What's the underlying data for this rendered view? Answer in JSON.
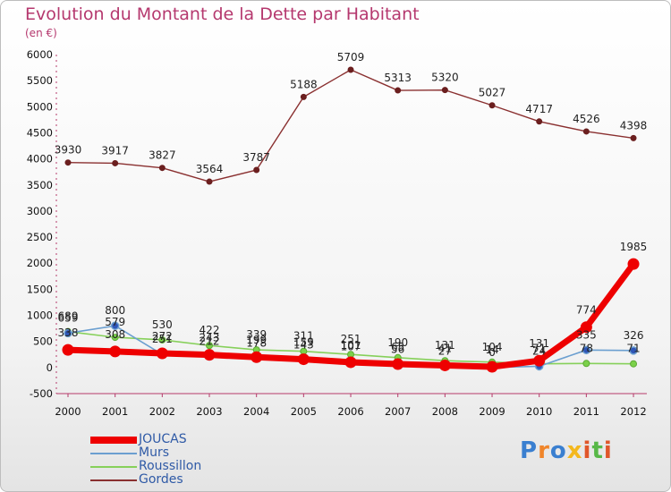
{
  "chart_data": {
    "type": "line",
    "title": "Evolution du Montant de la Dette par Habitant",
    "subtitle": "(en €)",
    "categories": [
      "2000",
      "2001",
      "2002",
      "2003",
      "2004",
      "2005",
      "2006",
      "2007",
      "2008",
      "2009",
      "2010",
      "2011",
      "2012"
    ],
    "ylim": [
      -500,
      6000
    ],
    "yticks": [
      -500,
      0,
      500,
      1000,
      1500,
      2000,
      2500,
      3000,
      3500,
      4000,
      4500,
      5000,
      5500,
      6000
    ],
    "grid": false,
    "legend_position": "bottom-left",
    "series": [
      {
        "name": "JOUCAS",
        "color": "#ee0000",
        "values": [
          338,
          308,
          272,
          243,
          199,
          159,
          101,
          65,
          41,
          14,
          131,
          774,
          1985
        ],
        "labels": [
          "338",
          "308",
          "272",
          "243",
          "199",
          "159",
          "101",
          "65",
          "41",
          "14",
          "131",
          "774",
          "1985"
        ]
      },
      {
        "name": "Murs",
        "color": "#6b9fd0",
        "values": [
          659,
          800,
          251,
          212,
          178,
          143,
          107,
          56,
          27,
          0,
          24,
          335,
          326
        ],
        "labels": [
          "659",
          "800",
          "251",
          "212",
          "178",
          "143",
          "107",
          "56",
          "27",
          "0",
          "24",
          "335",
          "326"
        ]
      },
      {
        "name": "Roussillon",
        "color": "#86d05a",
        "values": [
          689,
          579,
          530,
          422,
          339,
          311,
          251,
          190,
          131,
          104,
          71,
          78,
          71
        ],
        "labels": [
          "689",
          "579",
          "530",
          "422",
          "339",
          "311",
          "251",
          "190",
          "131",
          "104",
          "71",
          "78",
          "71"
        ]
      },
      {
        "name": "Gordes",
        "color": "#8a3030",
        "values": [
          3930,
          3917,
          3827,
          3564,
          3787,
          5188,
          5709,
          5313,
          5320,
          5027,
          4717,
          4526,
          4398
        ],
        "labels": [
          "3930",
          "3917",
          "3827",
          "3564",
          "3787",
          "5188",
          "5709",
          "5313",
          "5320",
          "5027",
          "4717",
          "4526",
          "4398"
        ]
      }
    ]
  },
  "brand": {
    "text": "Proxiti",
    "letter_colors": [
      "#3a7fd0",
      "#f0852a",
      "#3a7fd0",
      "#f4b81e",
      "#e0562a",
      "#58b848",
      "#e0562a"
    ]
  }
}
